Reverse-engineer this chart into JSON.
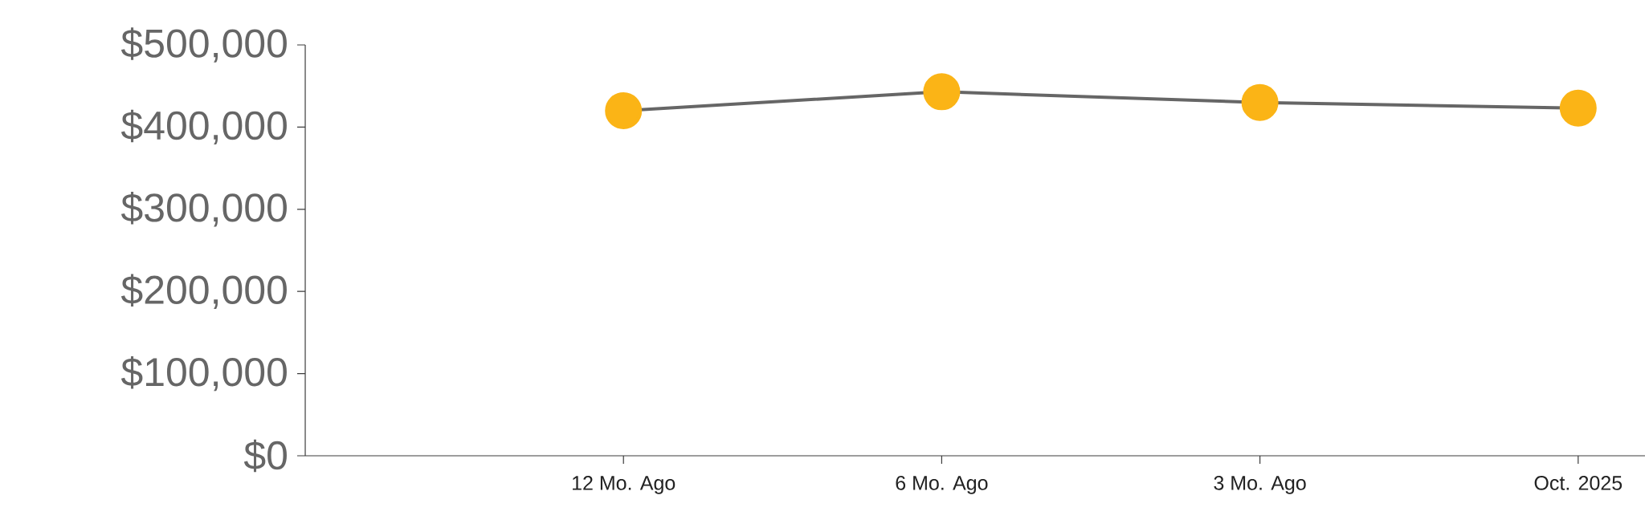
{
  "chart_data": {
    "type": "line",
    "categories": [
      "12 Mo. Ago",
      "6 Mo. Ago",
      "3 Mo. Ago",
      "Oct. 2025"
    ],
    "series": [
      {
        "color": "#fbb416",
        "values": [
          420000,
          443000,
          430000,
          423000
        ]
      }
    ],
    "ylim": [
      0,
      500000
    ],
    "yticks": [
      {
        "value": 0,
        "label": "$0"
      },
      {
        "value": 100000,
        "label": "$100,000"
      },
      {
        "value": 200000,
        "label": "$200,000"
      },
      {
        "value": 300000,
        "label": "$300,000"
      },
      {
        "value": 400000,
        "label": "$400,000"
      },
      {
        "value": 500000,
        "label": "$500,000"
      }
    ],
    "marker": "circle"
  }
}
